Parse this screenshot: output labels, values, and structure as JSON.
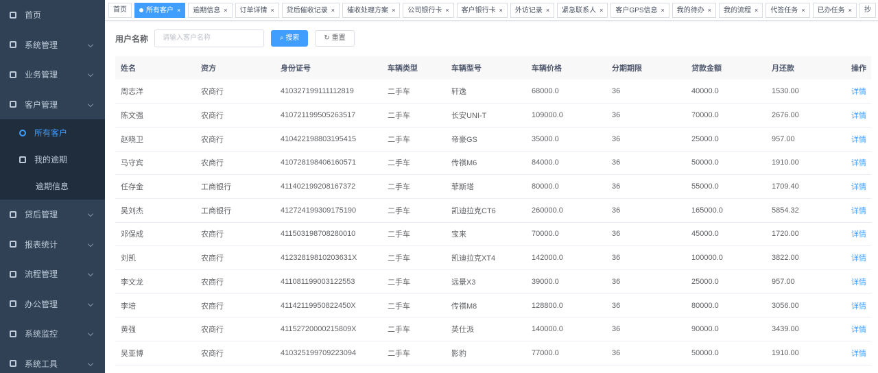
{
  "sidebar": {
    "menu": [
      "首页",
      "系统管理",
      "业务管理",
      "客户管理"
    ],
    "submenu": [
      "所有客户",
      "我的逾期",
      "逾期信息"
    ],
    "menu_after": [
      "贷后管理",
      "报表统计",
      "流程管理",
      "办公管理",
      "系统监控",
      "系统工具"
    ]
  },
  "tabs": [
    "首页",
    "所有客户",
    "逾期信息",
    "订单详情",
    "贷后催收记录",
    "催收处理方案",
    "公司银行卡",
    "客户银行卡",
    "外访记录",
    "紧急联系人",
    "客户GPS信息",
    "我的待办",
    "我的流程",
    "代签任务",
    "已办任务",
    "抄"
  ],
  "search": {
    "label": "用户名称",
    "placeholder": "请输入客户名称",
    "search_button": "搜索",
    "reset_button": "重置"
  },
  "table": {
    "headers": [
      "姓名",
      "资方",
      "身份证号",
      "车辆类型",
      "车辆型号",
      "车辆价格",
      "分期期限",
      "贷款金额",
      "月还款",
      "操作"
    ],
    "rows": [
      [
        "周志洋",
        "农商行",
        "410327199111112819",
        "二手车",
        "轩逸",
        "68000.0",
        "36",
        "40000.0",
        "1530.00",
        "详情"
      ],
      [
        "陈文强",
        "农商行",
        "410721199505263517",
        "二手车",
        "长安UNI-T",
        "109000.0",
        "36",
        "70000.0",
        "2676.00",
        "详情"
      ],
      [
        "赵晓卫",
        "农商行",
        "410422198803195415",
        "二手车",
        "帝豪GS",
        "35000.0",
        "36",
        "25000.0",
        "957.00",
        "详情"
      ],
      [
        "马守宾",
        "农商行",
        "410728198406160571",
        "二手车",
        "传祺M6",
        "84000.0",
        "36",
        "50000.0",
        "1910.00",
        "详情"
      ],
      [
        "任存金",
        "工商银行",
        "411402199208167372",
        "二手车",
        "菲斯塔",
        "80000.0",
        "36",
        "55000.0",
        "1709.40",
        "详情"
      ],
      [
        "吴刘杰",
        "工商银行",
        "412724199309175190",
        "二手车",
        "凯迪拉克CT6",
        "260000.0",
        "36",
        "165000.0",
        "5854.32",
        "详情"
      ],
      [
        "邓保成",
        "农商行",
        "411503198708280010",
        "二手车",
        "宝来",
        "70000.0",
        "36",
        "45000.0",
        "1720.00",
        "详情"
      ],
      [
        "刘凯",
        "农商行",
        "41232819810203631X",
        "二手车",
        "凯迪拉克XT4",
        "142000.0",
        "36",
        "100000.0",
        "3822.00",
        "详情"
      ],
      [
        "李文龙",
        "农商行",
        "411081199003122553",
        "二手车",
        "远景X3",
        "39000.0",
        "36",
        "25000.0",
        "957.00",
        "详情"
      ],
      [
        "李培",
        "农商行",
        "41142119950822450X",
        "二手车",
        "传祺M8",
        "128800.0",
        "36",
        "80000.0",
        "3056.00",
        "详情"
      ],
      [
        "黄强",
        "农商行",
        "41152720000215809X",
        "二手车",
        "英仕派",
        "140000.0",
        "36",
        "90000.0",
        "3439.00",
        "详情"
      ],
      [
        "吴亚博",
        "农商行",
        "410325199709223094",
        "二手车",
        "影豹",
        "77000.0",
        "36",
        "50000.0",
        "1910.00",
        "详情"
      ]
    ]
  }
}
